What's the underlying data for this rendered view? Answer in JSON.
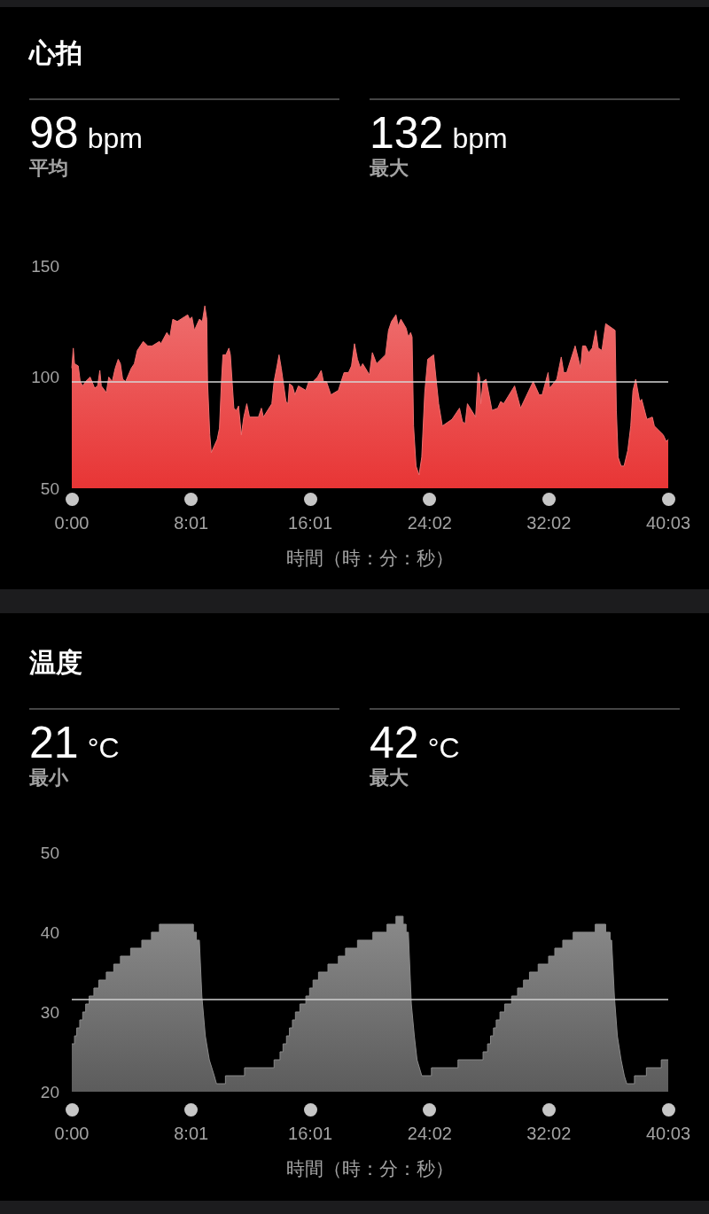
{
  "chart_data": [
    {
      "type": "area",
      "title": "心拍",
      "annotations": [
        "98 bpm",
        "平均",
        "132 bpm",
        "最大"
      ],
      "xlabel": "時間（時：分：秒）",
      "xlim": [
        0,
        2403
      ],
      "xticks": [
        {
          "value": 0,
          "label": "0:00"
        },
        {
          "value": 481,
          "label": "8:01"
        },
        {
          "value": 961,
          "label": "16:01"
        },
        {
          "value": 1442,
          "label": "24:02"
        },
        {
          "value": 1922,
          "label": "32:02"
        },
        {
          "value": 2403,
          "label": "40:03"
        }
      ],
      "ylim": [
        50,
        150
      ],
      "yticks": [
        50,
        100,
        150
      ],
      "color": "#e83535",
      "ref_lines": [
        {
          "axis": "y",
          "value": 98,
          "color": "#d6d6d6"
        }
      ],
      "x": [
        0,
        6,
        11,
        26,
        34,
        44,
        56,
        74,
        92,
        104,
        113,
        119,
        139,
        149,
        163,
        175,
        187,
        196,
        205,
        217,
        240,
        252,
        264,
        288,
        306,
        324,
        353,
        359,
        383,
        395,
        407,
        425,
        467,
        475,
        484,
        494,
        514,
        526,
        536,
        544,
        547,
        556,
        562,
        586,
        595,
        603,
        609,
        621,
        633,
        639,
        653,
        663,
        672,
        683,
        693,
        705,
        716,
        752,
        764,
        772,
        806,
        815,
        827,
        835,
        844,
        863,
        871,
        877,
        889,
        899,
        913,
        943,
        955,
        972,
        990,
        1005,
        1014,
        1026,
        1044,
        1074,
        1097,
        1115,
        1127,
        1139,
        1151,
        1163,
        1172,
        1199,
        1211,
        1228,
        1264,
        1276,
        1288,
        1306,
        1315,
        1326,
        1347,
        1356,
        1365,
        1371,
        1377,
        1387,
        1399,
        1410,
        1422,
        1434,
        1458,
        1466,
        1478,
        1493,
        1532,
        1562,
        1574,
        1585,
        1594,
        1627,
        1637,
        1643,
        1648,
        1657,
        1669,
        1693,
        1716,
        1728,
        1740,
        1784,
        1808,
        1859,
        1883,
        1895,
        1919,
        1925,
        1954,
        1972,
        1982,
        1994,
        2028,
        2050,
        2058,
        2070,
        2082,
        2097,
        2111,
        2121,
        2136,
        2151,
        2189,
        2194,
        2201,
        2213,
        2225,
        2240,
        2252,
        2261,
        2272,
        2288,
        2296,
        2317,
        2339,
        2347,
        2383,
        2395,
        2403
      ],
      "values": [
        104,
        113,
        106,
        105,
        98,
        96,
        98,
        100,
        95,
        96,
        103,
        96,
        93,
        100,
        98,
        104,
        108,
        106,
        99,
        98,
        104,
        106,
        112,
        116,
        114,
        114,
        116,
        115,
        120,
        118,
        126,
        125,
        128,
        126,
        127,
        121,
        126,
        125,
        132,
        126,
        98,
        74,
        66,
        72,
        77,
        98,
        110,
        110,
        113,
        110,
        86,
        85,
        87,
        74,
        82,
        88,
        82,
        82,
        86,
        82,
        88,
        98,
        105,
        110,
        104,
        89,
        88,
        97,
        96,
        92,
        96,
        94,
        98,
        98,
        100,
        103,
        98,
        98,
        92,
        94,
        102,
        102,
        105,
        115,
        108,
        104,
        106,
        101,
        111,
        106,
        110,
        121,
        125,
        128,
        123,
        126,
        122,
        118,
        120,
        118,
        78,
        60,
        56,
        64,
        93,
        108,
        110,
        101,
        88,
        78,
        81,
        86,
        80,
        79,
        88,
        82,
        102,
        100,
        88,
        98,
        99,
        85,
        86,
        89,
        88,
        96,
        86,
        98,
        92,
        92,
        102,
        95,
        99,
        109,
        102,
        102,
        114,
        104,
        114,
        114,
        111,
        113,
        121,
        113,
        112,
        124,
        121,
        85,
        64,
        60,
        60,
        67,
        78,
        94,
        99,
        89,
        90,
        81,
        82,
        78,
        74,
        71,
        72
      ]
    },
    {
      "type": "area",
      "title": "温度",
      "annotations": [
        "21 °C",
        "最小",
        "42 °C",
        "最大"
      ],
      "xlabel": "時間（時：分：秒）",
      "xlim": [
        0,
        2403
      ],
      "xticks": [
        {
          "value": 0,
          "label": "0:00"
        },
        {
          "value": 481,
          "label": "8:01"
        },
        {
          "value": 961,
          "label": "16:01"
        },
        {
          "value": 1442,
          "label": "24:02"
        },
        {
          "value": 1922,
          "label": "32:02"
        },
        {
          "value": 2403,
          "label": "40:03"
        }
      ],
      "ylim": [
        20,
        50
      ],
      "yticks": [
        20,
        30,
        40,
        50
      ],
      "color": "#5c5c5c",
      "ref_lines": [
        {
          "axis": "y",
          "value": 31.6,
          "color": "#cfcfcf"
        }
      ],
      "x": [
        0,
        11,
        11,
        20,
        20,
        32,
        32,
        44,
        44,
        56,
        56,
        70,
        70,
        89,
        89,
        109,
        109,
        139,
        139,
        169,
        169,
        196,
        196,
        237,
        237,
        282,
        282,
        321,
        321,
        353,
        353,
        490,
        490,
        502,
        502,
        514,
        524,
        538,
        554,
        574,
        583,
        619,
        619,
        696,
        696,
        815,
        815,
        839,
        839,
        851,
        851,
        865,
        865,
        877,
        877,
        889,
        889,
        901,
        901,
        919,
        919,
        943,
        943,
        958,
        958,
        972,
        972,
        994,
        994,
        1032,
        1032,
        1074,
        1074,
        1103,
        1103,
        1151,
        1151,
        1213,
        1213,
        1270,
        1270,
        1306,
        1306,
        1335,
        1335,
        1347,
        1347,
        1356,
        1368,
        1380,
        1391,
        1410,
        1449,
        1449,
        1556,
        1556,
        1657,
        1657,
        1675,
        1675,
        1687,
        1687,
        1699,
        1699,
        1710,
        1710,
        1725,
        1725,
        1744,
        1744,
        1772,
        1772,
        1796,
        1796,
        1820,
        1820,
        1844,
        1844,
        1879,
        1879,
        1921,
        1921,
        1946,
        1946,
        1978,
        1978,
        2020,
        2020,
        2109,
        2109,
        2151,
        2151,
        2169,
        2169,
        2175,
        2186,
        2198,
        2213,
        2226,
        2236,
        2267,
        2267,
        2315,
        2315,
        2375,
        2375,
        2403
      ],
      "values": [
        26,
        26,
        27,
        27,
        28,
        28,
        29,
        29,
        30,
        30,
        31,
        31,
        32,
        32,
        33,
        33,
        34,
        34,
        35,
        35,
        36,
        36,
        37,
        37,
        38,
        38,
        39,
        39,
        40,
        40,
        41,
        41,
        40,
        40,
        39,
        39,
        32,
        27,
        24,
        22,
        21,
        21,
        22,
        22,
        23,
        23,
        24,
        24,
        25,
        25,
        26,
        26,
        27,
        27,
        28,
        28,
        29,
        29,
        30,
        30,
        31,
        31,
        32,
        32,
        33,
        33,
        34,
        34,
        35,
        35,
        36,
        36,
        37,
        37,
        38,
        38,
        39,
        39,
        40,
        40,
        41,
        41,
        42,
        42,
        41,
        41,
        40,
        40,
        31,
        27,
        24,
        22,
        22,
        23,
        23,
        24,
        24,
        25,
        25,
        26,
        26,
        27,
        27,
        28,
        28,
        29,
        29,
        30,
        30,
        31,
        31,
        32,
        32,
        33,
        33,
        34,
        34,
        35,
        35,
        36,
        36,
        37,
        37,
        38,
        38,
        39,
        39,
        40,
        40,
        41,
        41,
        40,
        40,
        39,
        39,
        32,
        27,
        24,
        22,
        21,
        21,
        22,
        22,
        23,
        23,
        24,
        24
      ]
    }
  ]
}
